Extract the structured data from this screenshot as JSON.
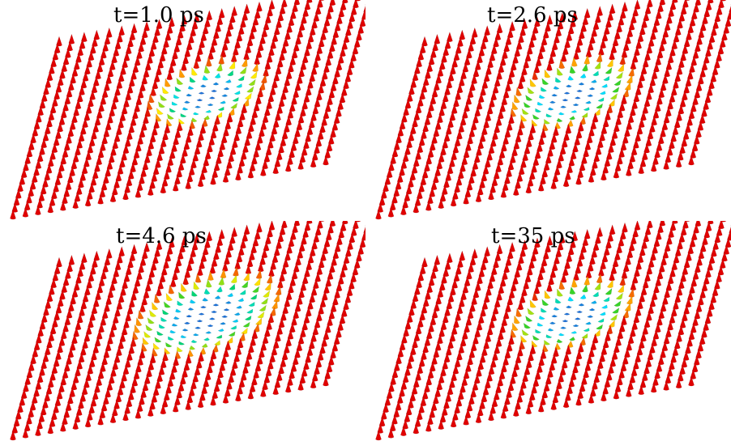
{
  "figure": {
    "panels": [
      {
        "title": "t=1.0 ps",
        "skyrmion_radius": 3.6
      },
      {
        "title": "t=2.6 ps",
        "skyrmion_radius": 3.9
      },
      {
        "title": "t=4.6 ps",
        "skyrmion_radius": 4.9
      },
      {
        "title": "t=35 ps",
        "skyrmion_radius": 3.9
      }
    ],
    "lattice_size": 26,
    "colormap": {
      "background_spin": "#e00000",
      "core_spin": "#1a6fd8",
      "stops": [
        "#e00000",
        "#ff9900",
        "#ffee00",
        "#00cc33",
        "#00e5ff",
        "#1a6fd8"
      ]
    }
  }
}
